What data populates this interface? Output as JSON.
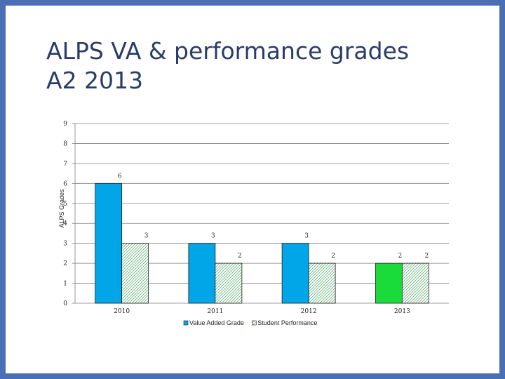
{
  "slide": {
    "title_line1": "ALPS VA & performance grades",
    "title_line2": "A2 2013"
  },
  "colors": {
    "frame": "#4a6fb5",
    "value_added": "#00a6e8",
    "value_added_2013": "#19dc3a",
    "student_hatch": "#4ca060",
    "grid": "#7f7f7f"
  },
  "chart_data": {
    "type": "bar",
    "title": "",
    "xlabel": "",
    "ylabel": "ALPS Grades",
    "ylim": [
      0,
      9
    ],
    "yticks": [
      "0",
      "1",
      "2",
      "3",
      "4",
      "5",
      "6",
      "7",
      "8",
      "9"
    ],
    "grid": true,
    "categories": [
      "2010",
      "2011",
      "2012",
      "2013"
    ],
    "series": [
      {
        "name": "Value Added Grade",
        "values": [
          6,
          3,
          3,
          2
        ],
        "data_labels": [
          "6",
          "3",
          "3",
          "2"
        ]
      },
      {
        "name": "Student Performance",
        "values": [
          3,
          2,
          2,
          2
        ],
        "data_labels": [
          "3",
          "2",
          "2",
          "2"
        ]
      }
    ],
    "legend": {
      "placement": "bottom",
      "items": [
        "Value Added Grade",
        "Student Performance"
      ]
    }
  }
}
